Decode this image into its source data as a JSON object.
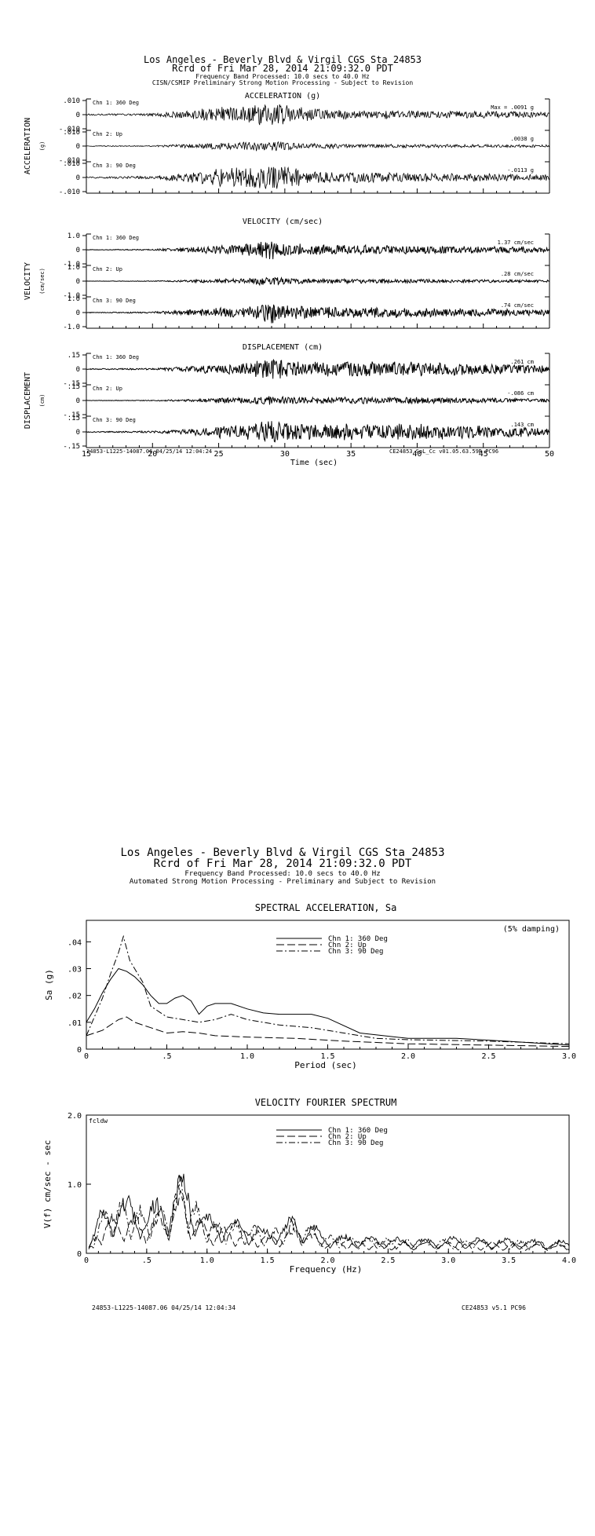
{
  "page1": {
    "title1": "Los Angeles - Beverly Blvd & Virgil     CGS Sta 24853",
    "title2": "Rcrd of Fri Mar 28, 2014 21:09:32.0 PDT",
    "title3": "Frequency Band Processed: 10.0 secs to 40.0 Hz",
    "title4": "CISN/CSMIP Preliminary Strong Motion Processing - Subject to Revision",
    "footer_left": "24853-L1225-14087.06 04/25/14 12:04:24",
    "footer_right": "CE24853  SoL_Cc  v01.05.63.59R PC96"
  },
  "page2": {
    "title1": "Los Angeles - Beverly Blvd & Virgil     CGS Sta 24853",
    "title2": "Rcrd of Fri Mar 28, 2014 21:09:32.0 PDT",
    "title3": "Frequency Band Processed:  10.0 secs to 40.0 Hz",
    "title4": "Automated Strong Motion Processing - Preliminary and Subject to Revision",
    "footer_left": "24853-L1225-14087.06  04/25/14 12:04:34",
    "footer_right": "CE24853    v5.1  PC96"
  },
  "chart_data": [
    {
      "type": "line",
      "title": "ACCELERATION (g)",
      "ylabel": "ACCELERATION",
      "yunit": "(g)",
      "xlim": [
        15,
        50
      ],
      "ylim": [
        -0.01,
        0.01
      ],
      "yticks": [
        ".010",
        "0",
        "-.010"
      ],
      "panels": [
        {
          "channel": "Chn 1: 360 Deg",
          "max_text": "Max =   .0091   g"
        },
        {
          "channel": "Chn 2: Up",
          "max_text": ".0038   g"
        },
        {
          "channel": "Chn 3: 90 Deg",
          "max_text": "-.0113   g"
        }
      ],
      "envelope": {
        "t": [
          15,
          20,
          23,
          25,
          27,
          28,
          29,
          30,
          32,
          35,
          40,
          45,
          50
        ],
        "a": [
          0.0005,
          0.001,
          0.0035,
          0.006,
          0.007,
          0.008,
          0.009,
          0.007,
          0.0045,
          0.0035,
          0.003,
          0.0025,
          0.002
        ]
      }
    },
    {
      "type": "line",
      "title": "VELOCITY (cm/sec)",
      "ylabel": "VELOCITY",
      "yunit": "(cm/sec)",
      "xlim": [
        15,
        50
      ],
      "ylim": [
        -1.0,
        1.0
      ],
      "yticks": [
        "1.0",
        "0",
        "-1.0"
      ],
      "panels": [
        {
          "channel": "Chn 1: 360 Deg",
          "max_text": "1.37   cm/sec"
        },
        {
          "channel": "Chn 2: Up",
          "max_text": ".28   cm/sec"
        },
        {
          "channel": "Chn 3: 90 Deg",
          "max_text": ".74   cm/sec"
        }
      ],
      "envelope": {
        "t": [
          15,
          20,
          23,
          25,
          27,
          29,
          30,
          32,
          35,
          40,
          45,
          50
        ],
        "a": [
          0.02,
          0.05,
          0.2,
          0.35,
          0.4,
          0.8,
          0.5,
          0.4,
          0.35,
          0.3,
          0.25,
          0.2
        ]
      }
    },
    {
      "type": "line",
      "title": "DISPLACEMENT (cm)",
      "ylabel": "DISPLACEMENT",
      "yunit": "(cm)",
      "xlim": [
        15,
        50
      ],
      "ylim": [
        -0.15,
        0.15
      ],
      "yticks": [
        ".15",
        "0",
        "-.15"
      ],
      "panels": [
        {
          "channel": "Chn 1: 360 Deg",
          "max_text": ".261   cm"
        },
        {
          "channel": "Chn 2: Up",
          "max_text": "-.086   cm"
        },
        {
          "channel": "Chn 3: 90 Deg",
          "max_text": ".143   cm"
        }
      ],
      "xlabel": "Time (sec)",
      "xticks": [
        15,
        20,
        25,
        30,
        35,
        40,
        45,
        50
      ],
      "envelope": {
        "t": [
          15,
          20,
          23,
          25,
          27,
          29,
          30,
          32,
          35,
          40,
          45,
          50
        ],
        "a": [
          0.005,
          0.01,
          0.03,
          0.06,
          0.07,
          0.12,
          0.09,
          0.08,
          0.08,
          0.08,
          0.06,
          0.04
        ]
      }
    },
    {
      "type": "line",
      "title": "SPECTRAL ACCELERATION, Sa",
      "annotation": "(5% damping)",
      "xlabel": "Period (sec)",
      "ylabel": "Sa (g)",
      "xlim": [
        0,
        3.0
      ],
      "ylim": [
        0,
        0.048
      ],
      "xticks": [
        "0",
        ".5",
        "1.0",
        "1.5",
        "2.0",
        "2.5",
        "3.0"
      ],
      "yticks": [
        "0",
        ".01",
        ".02",
        ".03",
        ".04"
      ],
      "series": [
        {
          "name": "Chn 1: 360 Deg",
          "dash": "",
          "x": [
            0,
            0.05,
            0.1,
            0.15,
            0.2,
            0.25,
            0.3,
            0.35,
            0.4,
            0.45,
            0.5,
            0.55,
            0.6,
            0.65,
            0.7,
            0.75,
            0.8,
            0.9,
            1.0,
            1.1,
            1.2,
            1.4,
            1.5,
            1.7,
            2.0,
            2.3,
            2.6,
            3.0
          ],
          "y": [
            0.01,
            0.015,
            0.021,
            0.026,
            0.03,
            0.029,
            0.027,
            0.024,
            0.02,
            0.017,
            0.017,
            0.019,
            0.02,
            0.018,
            0.013,
            0.016,
            0.017,
            0.017,
            0.015,
            0.0135,
            0.013,
            0.013,
            0.0115,
            0.006,
            0.004,
            0.004,
            0.003,
            0.0015
          ]
        },
        {
          "name": "Chn 2: Up",
          "dash": "10,4",
          "x": [
            0,
            0.1,
            0.2,
            0.25,
            0.3,
            0.35,
            0.4,
            0.5,
            0.6,
            0.7,
            0.8,
            1.0,
            1.3,
            1.6,
            2.0,
            2.5,
            3.0
          ],
          "y": [
            0.005,
            0.007,
            0.011,
            0.012,
            0.01,
            0.009,
            0.008,
            0.006,
            0.0065,
            0.006,
            0.005,
            0.0045,
            0.004,
            0.003,
            0.002,
            0.0015,
            0.001
          ]
        },
        {
          "name": "Chn 3: 90 Deg",
          "dash": "8,3,2,3",
          "x": [
            0,
            0.05,
            0.1,
            0.15,
            0.2,
            0.23,
            0.27,
            0.3,
            0.35,
            0.4,
            0.5,
            0.6,
            0.7,
            0.8,
            0.9,
            1.0,
            1.2,
            1.4,
            1.6,
            1.8,
            2.0,
            2.5,
            3.0
          ],
          "y": [
            0.005,
            0.012,
            0.019,
            0.028,
            0.036,
            0.042,
            0.033,
            0.03,
            0.025,
            0.016,
            0.012,
            0.011,
            0.01,
            0.011,
            0.013,
            0.011,
            0.009,
            0.008,
            0.006,
            0.004,
            0.0035,
            0.003,
            0.002
          ]
        }
      ]
    },
    {
      "type": "line",
      "title": "VELOCITY FOURIER SPECTRUM",
      "corner_label": "fcldw",
      "xlabel": "Frequency (Hz)",
      "ylabel": "V(f)   cm/sec - sec",
      "xlim": [
        0,
        4.0
      ],
      "ylim": [
        0,
        2.0
      ],
      "xticks": [
        "0",
        ".5",
        "1.0",
        "1.5",
        "2.0",
        "2.5",
        "3.0",
        "3.5",
        "4.0"
      ],
      "yticks": [
        "0",
        "1.0",
        "2.0"
      ],
      "series": [
        {
          "name": "Chn 1: 360 Deg",
          "dash": ""
        },
        {
          "name": "Chn 2: Up",
          "dash": "10,4"
        },
        {
          "name": "Chn 3: 90 Deg",
          "dash": "8,3,2,3"
        }
      ],
      "envelope": {
        "f": [
          0,
          0.15,
          0.3,
          0.5,
          0.7,
          0.8,
          0.9,
          1.0,
          1.2,
          1.5,
          1.75,
          2.0,
          2.5,
          3.0,
          3.5,
          4.0
        ],
        "a": [
          0.05,
          0.8,
          0.9,
          0.75,
          1.0,
          1.4,
          0.9,
          0.6,
          0.55,
          0.4,
          0.6,
          0.3,
          0.25,
          0.25,
          0.22,
          0.2
        ]
      }
    }
  ]
}
